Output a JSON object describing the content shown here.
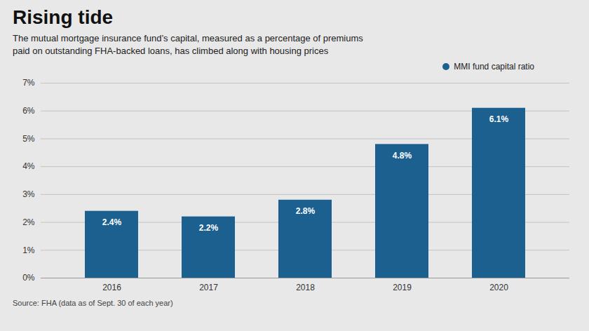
{
  "chart_data": {
    "type": "bar",
    "title": "Rising tide",
    "subtitle": "The mutual mortgage insurance fund’s capital, measured as a percentage of premiums\npaid on outstanding FHA-backed loans, has climbed along with housing prices",
    "source": "Source: FHA (data as of Sept. 30 of each year)",
    "categories": [
      "2016",
      "2017",
      "2018",
      "2019",
      "2020"
    ],
    "series": [
      {
        "name": "MMI fund capital ratio",
        "color": "#1c6090",
        "values": [
          2.4,
          2.2,
          2.8,
          4.8,
          6.1
        ],
        "value_labels": [
          "2.4%",
          "2.2%",
          "2.8%",
          "4.8%",
          "6.1%"
        ]
      }
    ],
    "ylim": [
      0,
      7
    ],
    "yticks": [
      {
        "value": 0,
        "label": "0%"
      },
      {
        "value": 1,
        "label": "1%"
      },
      {
        "value": 2,
        "label": "2%"
      },
      {
        "value": 3,
        "label": "3%"
      },
      {
        "value": 4,
        "label": "4%"
      },
      {
        "value": 5,
        "label": "5%"
      },
      {
        "value": 6,
        "label": "6%"
      },
      {
        "value": 7,
        "label": "7%"
      }
    ],
    "grid": true,
    "data_labels": true,
    "legend": "top-right"
  }
}
